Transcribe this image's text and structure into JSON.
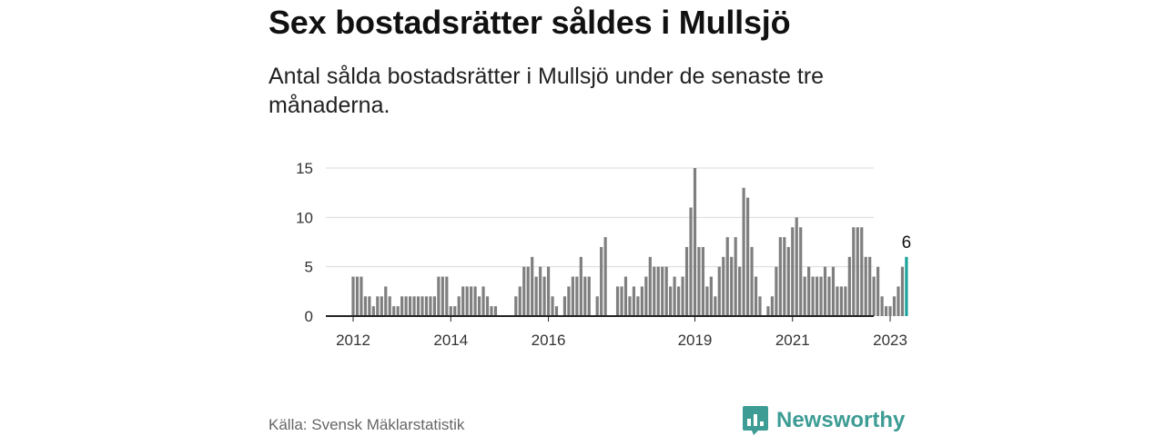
{
  "title": "Sex bostadsrätter såldes i Mullsjö",
  "subtitle": "Antal sålda bostadsrätter i Mullsjö under de senaste tre månaderna.",
  "source": "Källa: Svensk Mäklarstatistik",
  "brand": {
    "name": "Newsworthy",
    "icon": "newsworthy-logo-icon"
  },
  "colors": {
    "bar": "#7f7f7f",
    "highlight": "#1aa39a",
    "grid": "#d9d9d9",
    "axis": "#222222",
    "brand": "#3d9c94"
  },
  "chart_data": {
    "type": "bar",
    "title": "Sex bostadsrätter såldes i Mullsjö",
    "xlabel": "",
    "ylabel": "",
    "ylim": [
      0,
      15
    ],
    "yticks": [
      0,
      5,
      10,
      15
    ],
    "x_start": "2012-01",
    "x_tick_labels": [
      {
        "label": "2012",
        "index": 0
      },
      {
        "label": "2014",
        "index": 24
      },
      {
        "label": "2016",
        "index": 48
      },
      {
        "label": "2019",
        "index": 84
      },
      {
        "label": "2021",
        "index": 108
      },
      {
        "label": "2023",
        "index": 132
      }
    ],
    "values": [
      4,
      4,
      4,
      2,
      2,
      1,
      2,
      2,
      3,
      2,
      1,
      1,
      2,
      2,
      2,
      2,
      2,
      2,
      2,
      2,
      2,
      4,
      4,
      4,
      1,
      1,
      2,
      3,
      3,
      3,
      3,
      2,
      3,
      2,
      1,
      1,
      0,
      0,
      0,
      0,
      2,
      3,
      5,
      5,
      6,
      4,
      5,
      4,
      5,
      2,
      1,
      0,
      2,
      3,
      4,
      4,
      6,
      4,
      4,
      0,
      2,
      7,
      8,
      0,
      0,
      3,
      3,
      4,
      2,
      3,
      2,
      3,
      4,
      6,
      5,
      5,
      5,
      5,
      3,
      4,
      3,
      4,
      7,
      11,
      15,
      7,
      7,
      3,
      4,
      2,
      5,
      6,
      8,
      6,
      8,
      5,
      13,
      12,
      7,
      4,
      2,
      0,
      1,
      2,
      5,
      8,
      8,
      7,
      9,
      10,
      9,
      4,
      5,
      4,
      4,
      4,
      5,
      4,
      5,
      3,
      3,
      3,
      6,
      9,
      9,
      9,
      6,
      6,
      4,
      5,
      2,
      1,
      1,
      2,
      3,
      5,
      6
    ],
    "highlight": {
      "index": 136,
      "label": "6"
    }
  }
}
